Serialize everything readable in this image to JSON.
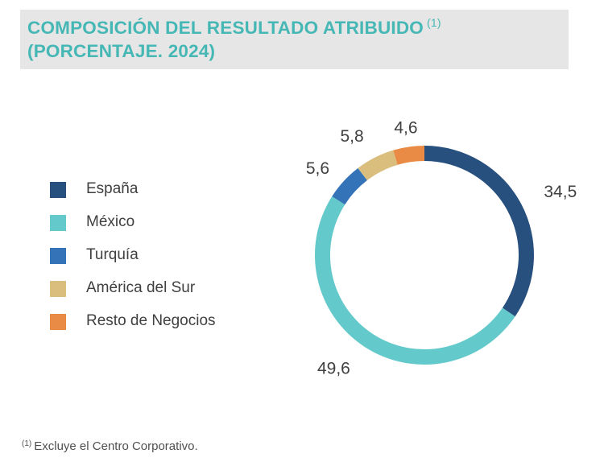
{
  "title": {
    "line1": "COMPOSICIÓN DEL RESULTADO ATRIBUIDO",
    "line1_sup": "(1)",
    "line2": "(PORCENTAJE. 2024)"
  },
  "footnote": {
    "marker": "(1)",
    "text": "Excluye el Centro Corporativo."
  },
  "chart_data": {
    "type": "pie",
    "variant": "donut",
    "title": "COMPOSICIÓN DEL RESULTADO ATRIBUIDO (PORCENTAJE. 2024)",
    "categories": [
      "España",
      "México",
      "Turquía",
      "América del Sur",
      "Resto de Negocios"
    ],
    "values": [
      34.5,
      49.6,
      5.6,
      5.8,
      4.6
    ],
    "value_labels": [
      "34,5",
      "49,6",
      "5,6",
      "5,8",
      "4,6"
    ],
    "colors": [
      "#27507f",
      "#63c9cb",
      "#3573b9",
      "#d9be7d",
      "#e98b45"
    ],
    "legend_position": "left"
  }
}
